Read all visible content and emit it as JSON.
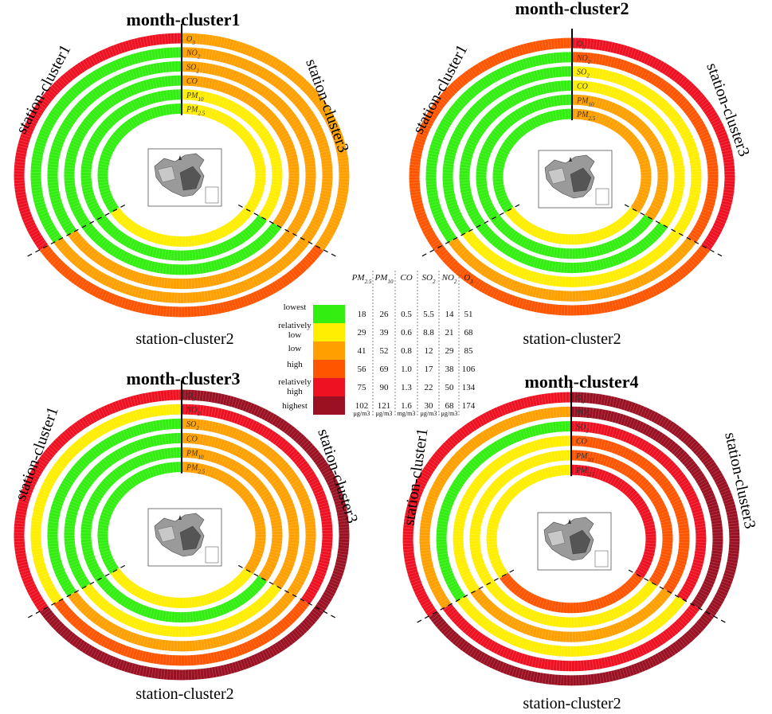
{
  "colors": {
    "lowest": "#33ee11",
    "relatively_low": "#ffee00",
    "low": "#ffa000",
    "high": "#ff5500",
    "relatively_high": "#ee1122",
    "highest": "#991122"
  },
  "legend": {
    "levels": [
      "lowest",
      "relatively low",
      "low",
      "high",
      "relatively high",
      "highest"
    ],
    "level_keys": [
      "lowest",
      "relatively_low",
      "low",
      "high",
      "relatively_high",
      "highest"
    ],
    "columns": [
      {
        "name": "PM",
        "sub": "2.5",
        "values": [
          "18",
          "29",
          "41",
          "56",
          "75",
          "102"
        ],
        "unit": "μg/m3"
      },
      {
        "name": "PM",
        "sub": "10",
        "values": [
          "26",
          "39",
          "52",
          "69",
          "90",
          "121"
        ],
        "unit": "μg/m3"
      },
      {
        "name": "CO",
        "sub": "",
        "values": [
          "0.5",
          "0.6",
          "0.8",
          "1.0",
          "1.3",
          "1.6"
        ],
        "unit": "mg/m3"
      },
      {
        "name": "SO",
        "sub": "2",
        "values": [
          "5.5",
          "8.8",
          "12",
          "17",
          "22",
          "30"
        ],
        "unit": "μg/m3"
      },
      {
        "name": "NO",
        "sub": "2",
        "values": [
          "14",
          "21",
          "29",
          "38",
          "50",
          "68"
        ],
        "unit": "μg/m3"
      },
      {
        "name": "O",
        "sub": "3",
        "values": [
          "51",
          "68",
          "85",
          "106",
          "134",
          "174"
        ],
        "unit": ""
      }
    ]
  },
  "chart_data": [
    {
      "type": "ring",
      "title": "month-cluster1",
      "sectors": [
        "station-cluster1",
        "station-cluster2",
        "station-cluster3"
      ],
      "pollutants": [
        "O3",
        "NO2",
        "SO2",
        "CO",
        "PM10",
        "PM2.5"
      ],
      "levels": {
        "O3": [
          "relatively_high",
          "high",
          "low"
        ],
        "NO2": [
          "lowest",
          "low",
          "low"
        ],
        "SO2": [
          "lowest",
          "low",
          "low"
        ],
        "CO": [
          "lowest",
          "lowest",
          "low"
        ],
        "PM10": [
          "lowest",
          "lowest",
          "relatively_low"
        ],
        "PM2.5": [
          "lowest",
          "relatively_low",
          "relatively_low"
        ]
      }
    },
    {
      "type": "ring",
      "title": "month-cluster2",
      "sectors": [
        "station-cluster1",
        "station-cluster2",
        "station-cluster3"
      ],
      "pollutants": [
        "O3",
        "NO2",
        "SO2",
        "CO",
        "PM10",
        "PM2.5"
      ],
      "levels": {
        "O3": [
          "high",
          "high",
          "relatively_high"
        ],
        "NO2": [
          "lowest",
          "low",
          "high"
        ],
        "SO2": [
          "lowest",
          "relatively_low",
          "relatively_low"
        ],
        "CO": [
          "lowest",
          "lowest",
          "relatively_low"
        ],
        "PM10": [
          "lowest",
          "lowest",
          "low"
        ],
        "PM2.5": [
          "lowest",
          "relatively_low",
          "low"
        ]
      }
    },
    {
      "type": "ring",
      "title": "month-cluster3",
      "sectors": [
        "station-cluster1",
        "station-cluster2",
        "station-cluster3"
      ],
      "pollutants": [
        "O3",
        "NO2",
        "SO2",
        "CO",
        "PM10",
        "PM2.5"
      ],
      "levels": {
        "O3": [
          "relatively_high",
          "highest",
          "highest"
        ],
        "NO2": [
          "relatively_low",
          "high",
          "relatively_high"
        ],
        "SO2": [
          "lowest",
          "low",
          "low"
        ],
        "CO": [
          "lowest",
          "relatively_low",
          "low"
        ],
        "PM10": [
          "lowest",
          "lowest",
          "low"
        ],
        "PM2.5": [
          "lowest",
          "relatively_low",
          "low"
        ]
      }
    },
    {
      "type": "ring",
      "title": "month-cluster4",
      "sectors": [
        "station-cluster1",
        "station-cluster2",
        "station-cluster3"
      ],
      "pollutants": [
        "O3",
        "NO2",
        "SO2",
        "CO",
        "PM10",
        "PM2.5"
      ],
      "levels": {
        "O3": [
          "relatively_high",
          "highest",
          "highest"
        ],
        "NO2": [
          "low",
          "relatively_high",
          "highest"
        ],
        "SO2": [
          "lowest",
          "relatively_low",
          "relatively_high"
        ],
        "CO": [
          "relatively_low",
          "low",
          "high"
        ],
        "PM10": [
          "relatively_low",
          "relatively_low",
          "high"
        ],
        "PM2.5": [
          "relatively_low",
          "high",
          "relatively_high"
        ]
      }
    }
  ]
}
